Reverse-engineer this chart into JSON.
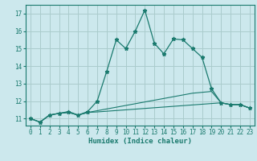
{
  "title": "",
  "xlabel": "Humidex (Indice chaleur)",
  "bg_color": "#cce8ed",
  "grid_color": "#aacccc",
  "line_color": "#1a7a6e",
  "xlim": [
    -0.5,
    23.5
  ],
  "ylim": [
    10.6,
    17.5
  ],
  "yticks": [
    11,
    12,
    13,
    14,
    15,
    16,
    17
  ],
  "xticks": [
    0,
    1,
    2,
    3,
    4,
    5,
    6,
    7,
    8,
    9,
    10,
    11,
    12,
    13,
    14,
    15,
    16,
    17,
    18,
    19,
    20,
    21,
    22,
    23
  ],
  "series1_x": [
    0,
    1,
    2,
    3,
    4,
    5,
    6,
    7,
    8,
    9,
    10,
    11,
    12,
    13,
    14,
    15,
    16,
    17,
    18,
    19,
    20,
    21,
    22,
    23
  ],
  "series1_y": [
    11.0,
    10.8,
    11.2,
    11.3,
    11.4,
    11.2,
    11.4,
    12.0,
    13.7,
    15.5,
    15.0,
    16.0,
    17.2,
    15.3,
    14.7,
    15.55,
    15.5,
    15.0,
    14.5,
    12.7,
    11.9,
    11.8,
    11.8,
    11.6
  ],
  "series2_x": [
    0,
    1,
    2,
    3,
    4,
    5,
    6,
    7,
    8,
    9,
    10,
    11,
    12,
    13,
    14,
    15,
    16,
    17,
    18,
    19,
    20,
    21,
    22,
    23
  ],
  "series2_y": [
    11.0,
    10.8,
    11.2,
    11.3,
    11.35,
    11.2,
    11.35,
    11.45,
    11.55,
    11.65,
    11.75,
    11.85,
    11.95,
    12.05,
    12.15,
    12.25,
    12.35,
    12.45,
    12.5,
    12.55,
    11.9,
    11.8,
    11.8,
    11.6
  ],
  "series3_x": [
    0,
    1,
    2,
    3,
    4,
    5,
    6,
    7,
    8,
    9,
    10,
    11,
    12,
    13,
    14,
    15,
    16,
    17,
    18,
    19,
    20,
    21,
    22,
    23
  ],
  "series3_y": [
    11.0,
    10.8,
    11.2,
    11.3,
    11.35,
    11.2,
    11.35,
    11.38,
    11.42,
    11.46,
    11.5,
    11.54,
    11.58,
    11.62,
    11.66,
    11.7,
    11.74,
    11.78,
    11.82,
    11.86,
    11.9,
    11.8,
    11.8,
    11.6
  ]
}
